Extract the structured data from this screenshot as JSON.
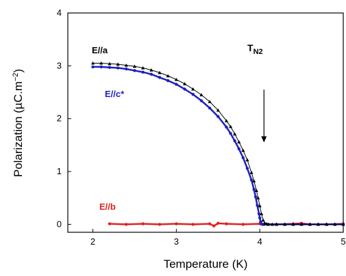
{
  "chart_data": {
    "type": "scatter",
    "title": "",
    "xlabel": "Temperature (K)",
    "ylabel": "Polarization (µC.m",
    "ylabel_sup": "−2",
    "ylabel_close": ")",
    "xlim": [
      1.7,
      5
    ],
    "ylim": [
      -0.15,
      4
    ],
    "xticks": [
      2,
      3,
      4,
      5
    ],
    "yticks": [
      0,
      1,
      2,
      3,
      4
    ],
    "grid": false,
    "series": [
      {
        "name": "E//a",
        "color": "#000000",
        "marker": "triangle",
        "x": [
          2.0,
          2.1,
          2.2,
          2.3,
          2.4,
          2.5,
          2.6,
          2.7,
          2.8,
          2.9,
          3.0,
          3.1,
          3.2,
          3.3,
          3.4,
          3.5,
          3.6,
          3.65,
          3.7,
          3.75,
          3.8,
          3.85,
          3.9,
          3.93,
          3.96,
          3.98,
          4.0,
          4.02,
          4.04,
          4.06,
          4.08,
          4.1,
          4.15,
          4.2,
          4.3,
          4.4,
          4.5,
          4.6,
          4.7,
          4.8,
          4.9,
          5.0
        ],
        "y": [
          3.05,
          3.05,
          3.04,
          3.03,
          3.01,
          2.99,
          2.96,
          2.92,
          2.87,
          2.81,
          2.74,
          2.66,
          2.56,
          2.45,
          2.32,
          2.16,
          1.96,
          1.85,
          1.71,
          1.56,
          1.4,
          1.22,
          0.98,
          0.82,
          0.64,
          0.5,
          0.35,
          0.2,
          0.08,
          0.02,
          0.01,
          0.0,
          0.0,
          0.0,
          0.0,
          0.0,
          0.0,
          0.0,
          0.0,
          0.0,
          0.0,
          0.0
        ]
      },
      {
        "name": "E//c*",
        "color": "#1f1fbf",
        "marker": "circle",
        "x": [
          2.0,
          2.1,
          2.2,
          2.3,
          2.4,
          2.5,
          2.6,
          2.7,
          2.8,
          2.9,
          3.0,
          3.1,
          3.2,
          3.3,
          3.4,
          3.5,
          3.6,
          3.65,
          3.7,
          3.75,
          3.8,
          3.85,
          3.9,
          3.93,
          3.95,
          3.97,
          3.99,
          4.0,
          4.01,
          4.02,
          4.03,
          4.05,
          4.1,
          4.2,
          4.3,
          4.4,
          4.5,
          4.6,
          4.7,
          4.8,
          4.9,
          5.0
        ],
        "y": [
          2.98,
          2.98,
          2.97,
          2.96,
          2.94,
          2.91,
          2.88,
          2.84,
          2.78,
          2.72,
          2.65,
          2.56,
          2.46,
          2.34,
          2.2,
          2.04,
          1.84,
          1.72,
          1.58,
          1.43,
          1.26,
          1.06,
          0.84,
          0.66,
          0.52,
          0.36,
          0.2,
          0.12,
          0.05,
          0.01,
          0.0,
          0.0,
          0.0,
          0.0,
          0.0,
          0.0,
          0.0,
          0.0,
          0.0,
          0.0,
          0.0,
          0.0
        ]
      },
      {
        "name": "E//b",
        "color": "#e02020",
        "marker": "circle",
        "x": [
          2.2,
          2.4,
          2.6,
          2.8,
          3.0,
          3.2,
          3.4,
          3.45,
          3.5,
          3.6,
          3.8,
          4.0,
          4.2,
          4.4,
          4.5,
          4.6,
          4.8,
          5.0
        ],
        "y": [
          0.01,
          0.0,
          0.01,
          0.0,
          0.01,
          0.0,
          0.01,
          -0.03,
          0.02,
          0.01,
          0.0,
          0.01,
          0.0,
          0.01,
          0.02,
          0.0,
          0.0,
          0.01
        ]
      }
    ],
    "annotations": [
      {
        "text": "T",
        "subscript": "N2",
        "arrow_x": 4.05,
        "arrow_from_y": 2.55,
        "arrow_to_y": 1.55
      }
    ]
  }
}
